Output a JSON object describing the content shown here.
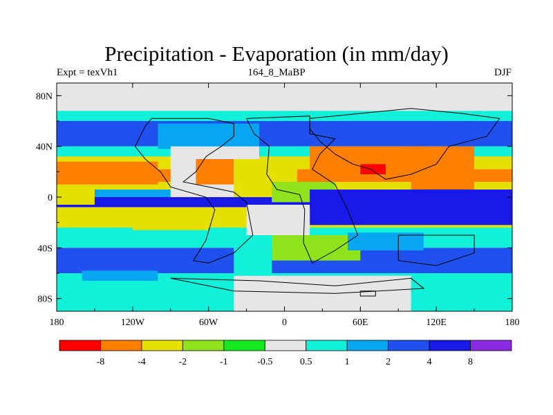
{
  "title": "Precipitation - Evaporation (in mm/day)",
  "subtitle_left": "Expt = texVh1",
  "subtitle_center": "164_8_MaBP",
  "subtitle_right": "DJF",
  "colors": {
    "c0": "#ff0000",
    "c1": "#ff7f00",
    "c2": "#e5e000",
    "c3": "#8fe31c",
    "c4": "#15e81c",
    "c5": "#e6e6e6",
    "c6": "#11f0d8",
    "c7": "#06a7f0",
    "c8": "#2050ee",
    "c9": "#1a1ae8",
    "c10": "#8a2be2"
  },
  "chart_data": {
    "type": "heatmap",
    "x_ticks": [
      "180",
      "120W",
      "60W",
      "0",
      "60E",
      "120E",
      "180"
    ],
    "y_ticks": [
      "80N",
      "40N",
      "0",
      "40S",
      "80S"
    ],
    "colorbar": {
      "colors": [
        "#ff0000",
        "#ff7f00",
        "#e5e000",
        "#8fe31c",
        "#15e81c",
        "#e6e6e6",
        "#11f0d8",
        "#06a7f0",
        "#2050ee",
        "#1a1ae8",
        "#8a2be2"
      ],
      "labels": [
        "-8",
        "-4",
        "-2",
        "-1",
        "-0.5",
        "0.5",
        "1",
        "2",
        "4",
        "8"
      ]
    },
    "bands": [
      {
        "lat": [
          90,
          70
        ],
        "level": "c5"
      },
      {
        "lat": [
          70,
          60
        ],
        "level": "c6"
      },
      {
        "lat": [
          60,
          40
        ],
        "level": "c8"
      },
      {
        "lat": [
          40,
          32
        ],
        "level": "c6"
      },
      {
        "lat": [
          32,
          22
        ],
        "level": "c2"
      },
      {
        "lat": [
          22,
          12
        ],
        "level": "c1"
      },
      {
        "lat": [
          12,
          6
        ],
        "level": "c2"
      },
      {
        "lat": [
          6,
          0
        ],
        "level": "c7"
      },
      {
        "lat": [
          0,
          -8
        ],
        "level": "c9"
      },
      {
        "lat": [
          -8,
          -24
        ],
        "level": "c2"
      },
      {
        "lat": [
          -24,
          -40
        ],
        "level": "c6"
      },
      {
        "lat": [
          -40,
          -60
        ],
        "level": "c8"
      },
      {
        "lat": [
          -60,
          -90
        ],
        "level": "c6"
      }
    ],
    "patches": [
      {
        "lon": [
          -180,
          180
        ],
        "lat": [
          90,
          68
        ],
        "level": "c5"
      },
      {
        "lon": [
          -100,
          -20
        ],
        "lat": [
          58,
          38
        ],
        "level": "c7"
      },
      {
        "lon": [
          -90,
          -20
        ],
        "lat": [
          40,
          0
        ],
        "level": "c5"
      },
      {
        "lon": [
          -70,
          -40
        ],
        "lat": [
          30,
          10
        ],
        "level": "c1"
      },
      {
        "lon": [
          -40,
          10
        ],
        "lat": [
          30,
          0
        ],
        "level": "c2"
      },
      {
        "lon": [
          -10,
          40
        ],
        "lat": [
          12,
          -4
        ],
        "level": "c3"
      },
      {
        "lon": [
          20,
          110
        ],
        "lat": [
          40,
          20
        ],
        "level": "c1"
      },
      {
        "lon": [
          60,
          80
        ],
        "lat": [
          26,
          18
        ],
        "level": "c0"
      },
      {
        "lon": [
          100,
          150
        ],
        "lat": [
          40,
          6
        ],
        "level": "c1"
      },
      {
        "lon": [
          -180,
          -100
        ],
        "lat": [
          28,
          10
        ],
        "level": "c1"
      },
      {
        "lon": [
          -180,
          -150
        ],
        "lat": [
          6,
          -6
        ],
        "level": "c2"
      },
      {
        "lon": [
          150,
          180
        ],
        "lat": [
          4,
          -2
        ],
        "level": "c1"
      },
      {
        "lon": [
          20,
          180
        ],
        "lat": [
          6,
          -22
        ],
        "level": "c9"
      },
      {
        "lon": [
          -30,
          20
        ],
        "lat": [
          -6,
          -30
        ],
        "level": "c5"
      },
      {
        "lon": [
          -120,
          -60
        ],
        "lat": [
          -10,
          -26
        ],
        "level": "c2"
      },
      {
        "lon": [
          -40,
          -10
        ],
        "lat": [
          -40,
          -62
        ],
        "level": "c6"
      },
      {
        "lon": [
          -10,
          60
        ],
        "lat": [
          -30,
          -50
        ],
        "level": "c3"
      },
      {
        "lon": [
          50,
          110
        ],
        "lat": [
          -28,
          -42
        ],
        "level": "c7"
      },
      {
        "lon": [
          -40,
          100
        ],
        "lat": [
          -62,
          -90
        ],
        "level": "c5"
      },
      {
        "lon": [
          -160,
          -100
        ],
        "lat": [
          -58,
          -66
        ],
        "level": "c7"
      }
    ],
    "coastlines": [
      [
        [
          -105,
          62
        ],
        [
          -60,
          62
        ],
        [
          -40,
          58
        ],
        [
          -40,
          48
        ],
        [
          -50,
          40
        ],
        [
          -62,
          32
        ],
        [
          -70,
          20
        ],
        [
          -80,
          12
        ],
        [
          -60,
          8
        ],
        [
          -40,
          4
        ],
        [
          -30,
          -4
        ],
        [
          -25,
          -30
        ],
        [
          -40,
          -44
        ],
        [
          -60,
          -52
        ],
        [
          -72,
          -50
        ],
        [
          -62,
          -34
        ],
        [
          -55,
          -10
        ],
        [
          -62,
          0
        ],
        [
          -90,
          8
        ],
        [
          -98,
          20
        ],
        [
          -110,
          30
        ],
        [
          -118,
          40
        ],
        [
          -110,
          56
        ],
        [
          -105,
          62
        ]
      ],
      [
        [
          -30,
          62
        ],
        [
          20,
          64
        ],
        [
          20,
          50
        ],
        [
          40,
          46
        ],
        [
          28,
          34
        ],
        [
          22,
          22
        ],
        [
          40,
          10
        ],
        [
          50,
          -10
        ],
        [
          58,
          -30
        ],
        [
          40,
          -42
        ],
        [
          22,
          -52
        ],
        [
          15,
          -36
        ],
        [
          16,
          -10
        ],
        [
          12,
          2
        ],
        [
          -6,
          6
        ],
        [
          -14,
          18
        ],
        [
          -12,
          40
        ],
        [
          -24,
          50
        ],
        [
          -30,
          62
        ]
      ],
      [
        [
          20,
          62
        ],
        [
          60,
          66
        ],
        [
          100,
          70
        ],
        [
          140,
          66
        ],
        [
          170,
          62
        ],
        [
          160,
          48
        ],
        [
          130,
          40
        ],
        [
          120,
          26
        ],
        [
          100,
          18
        ],
        [
          80,
          14
        ],
        [
          68,
          22
        ],
        [
          54,
          26
        ],
        [
          40,
          34
        ],
        [
          28,
          44
        ],
        [
          20,
          54
        ],
        [
          20,
          62
        ]
      ],
      [
        [
          90,
          -30
        ],
        [
          150,
          -30
        ],
        [
          150,
          -44
        ],
        [
          120,
          -54
        ],
        [
          90,
          -50
        ],
        [
          90,
          -30
        ]
      ],
      [
        [
          -90,
          -64
        ],
        [
          -20,
          -66
        ],
        [
          40,
          -70
        ],
        [
          100,
          -64
        ],
        [
          110,
          -72
        ],
        [
          40,
          -76
        ],
        [
          -40,
          -74
        ],
        [
          -90,
          -64
        ]
      ],
      [
        [
          60,
          -74
        ],
        [
          72,
          -74
        ],
        [
          72,
          -78
        ],
        [
          60,
          -78
        ],
        [
          60,
          -74
        ]
      ]
    ]
  }
}
